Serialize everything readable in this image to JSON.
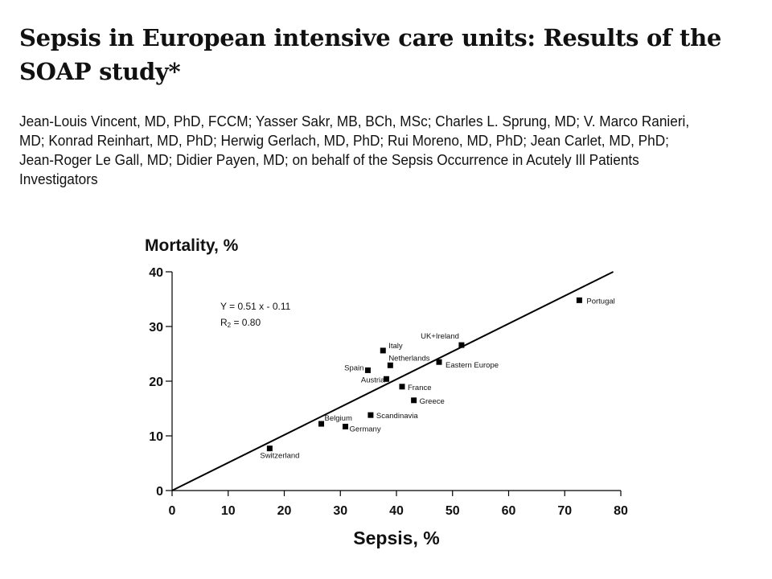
{
  "paper": {
    "title": "Sepsis in European intensive care units: Results of the SOAP study*",
    "authors": "Jean-Louis Vincent, MD, PhD, FCCM; Yasser Sakr, MB, BCh, MSc; Charles L. Sprung, MD; V. Marco Ranieri, MD; Konrad Reinhart, MD, PhD; Herwig Gerlach, MD, PhD; Rui Moreno, MD, PhD; Jean Carlet, MD, PhD; Jean-Roger Le Gall, MD; Didier Payen, MD; on behalf of the Sepsis Occurrence in Acutely Ill Patients Investigators"
  },
  "chart_data": {
    "type": "scatter",
    "title": "",
    "xlabel": "Sepsis, %",
    "ylabel": "Mortality, %",
    "xlim": [
      0,
      80
    ],
    "ylim": [
      0,
      40
    ],
    "xticks": [
      0,
      10,
      20,
      30,
      40,
      50,
      60,
      70,
      80
    ],
    "yticks": [
      0,
      10,
      20,
      30,
      40
    ],
    "grid": false,
    "equation": "Y = 0.51 x - 0.11",
    "r2": "R2 = 0.80",
    "points": [
      {
        "label": "Portugal",
        "x": 72.6,
        "y": 34.8
      },
      {
        "label": "UK+Ireland",
        "x": 51.6,
        "y": 26.6
      },
      {
        "label": "Eastern Europe",
        "x": 47.6,
        "y": 23.5
      },
      {
        "label": "Italy",
        "x": 37.6,
        "y": 25.6
      },
      {
        "label": "Netherlands",
        "x": 38.9,
        "y": 22.9
      },
      {
        "label": "Spain",
        "x": 34.9,
        "y": 22.0
      },
      {
        "label": "Austria",
        "x": 38.2,
        "y": 20.4
      },
      {
        "label": "France",
        "x": 41.0,
        "y": 19.0
      },
      {
        "label": "Greece",
        "x": 43.1,
        "y": 16.5
      },
      {
        "label": "Scandinavia",
        "x": 35.4,
        "y": 13.8
      },
      {
        "label": "Belgium",
        "x": 26.6,
        "y": 12.2
      },
      {
        "label": "Germany",
        "x": 30.9,
        "y": 11.7
      },
      {
        "label": "Switzerland",
        "x": 17.4,
        "y": 7.7
      }
    ],
    "regression": {
      "slope": 0.51,
      "intercept": -0.11
    }
  }
}
